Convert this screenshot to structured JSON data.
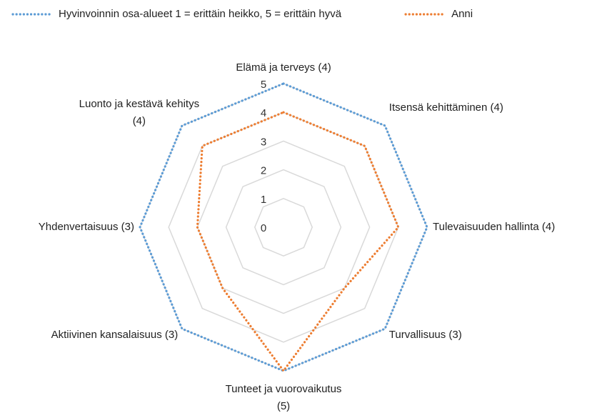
{
  "chart_data": {
    "type": "radar",
    "categories": [
      "Elämä ja terveys (4)",
      "Itsensä kehittäminen (4)",
      "Tulevaisuuden hallinta (4)",
      "Turvallisuus (3)",
      "Tunteet ja vuorovaikutus (5)",
      "Aktiivinen kansalaisuus (3)",
      "Yhdenvertaisuus (3)",
      "Luonto ja kestävä kehitys (4)"
    ],
    "series": [
      {
        "name": "Hyvinvoinnin osa-alueet 1 = erittäin heikko, 5 = erittäin hyvä",
        "color": "#5b9bd5",
        "values": [
          5,
          5,
          5,
          5,
          5,
          5,
          5,
          5
        ]
      },
      {
        "name": "Anni",
        "color": "#ed7d31",
        "values": [
          4,
          4,
          4,
          3,
          5,
          3,
          3,
          4
        ]
      }
    ],
    "rlim": [
      0,
      5
    ],
    "rticks": [
      0,
      1,
      2,
      3,
      4,
      5
    ],
    "grid": true,
    "legend": "top"
  }
}
